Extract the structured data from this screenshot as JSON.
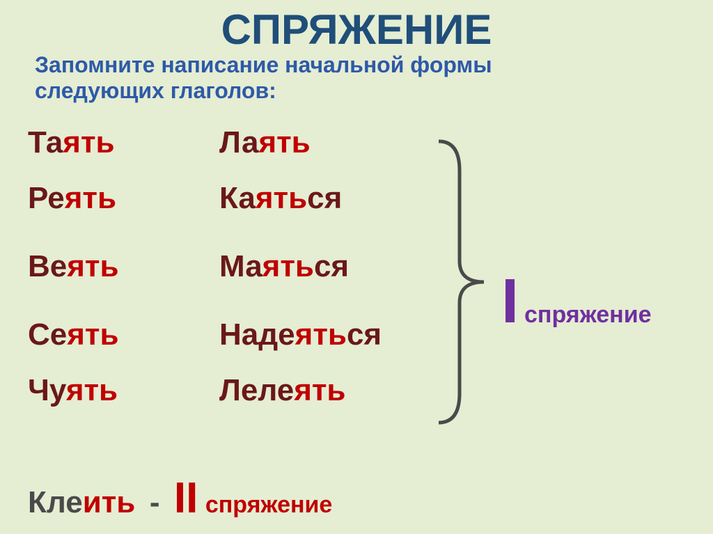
{
  "colors": {
    "background": "#e5edd3",
    "title": "#1f4e79",
    "subtitle": "#2e5aa8",
    "stem": "#6a1818",
    "suffix": "#c00000",
    "bracket": "#4a4a4a",
    "conj1": "#7030a0",
    "last_stem": "#4a4a4a",
    "last_suffix": "#c00000",
    "roman2": "#c00000"
  },
  "title": "СПРЯЖЕНИЕ",
  "subtitle_l1": "Запомните написание начальной формы",
  "subtitle_l2": "следующих глаголов:",
  "rows": [
    {
      "w1": {
        "stem": "Та",
        "suf": "ять"
      },
      "w2": {
        "stem": "Ла",
        "suf": "ять"
      }
    },
    {
      "w1": {
        "stem": "Ре",
        "suf": "ять"
      },
      "w2": {
        "stem": "Ка",
        "suf": "ять",
        "tail": "ся"
      }
    },
    {
      "w1": {
        "stem": "Ве",
        "suf": "ять"
      },
      "w2": {
        "stem": "Ма",
        "suf": "ять",
        "tail": "ся"
      }
    },
    {
      "w1": {
        "stem": "Се",
        "suf": "ять"
      },
      "w2": {
        "stem": "Наде",
        "suf": "ять",
        "tail": "ся"
      }
    },
    {
      "w1": {
        "stem": "Чу",
        "suf": "ять"
      },
      "w2": {
        "stem": "Леле",
        "suf": "ять"
      }
    }
  ],
  "conj1": {
    "roman": "I",
    "word": "спряжение"
  },
  "last": {
    "stem": "Кле",
    "suf": "ить",
    "dash": "-",
    "roman": "II",
    "word": "спряжение"
  }
}
